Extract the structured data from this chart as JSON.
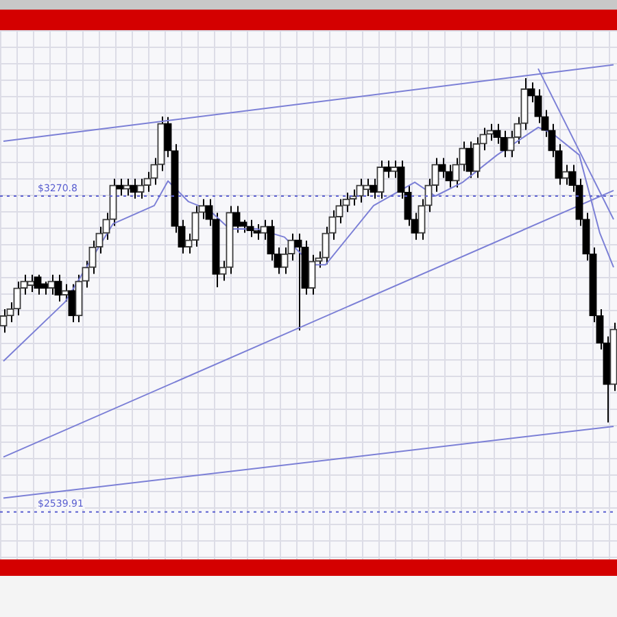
{
  "chart_data": {
    "type": "candlestick",
    "categories": [
      null,
      null,
      null,
      null,
      null,
      null,
      null,
      null,
      null,
      null,
      null,
      null,
      null,
      null,
      null,
      null,
      null,
      null,
      null,
      null,
      null,
      null,
      null,
      null,
      null,
      null,
      null,
      null,
      null,
      null,
      null,
      null,
      null,
      null,
      null,
      null,
      null,
      null,
      null,
      null,
      null,
      null,
      null,
      null,
      null,
      null,
      null,
      null,
      null,
      null,
      null,
      null,
      null,
      null,
      null,
      null,
      null,
      null,
      null,
      null,
      null,
      null,
      null,
      null,
      null,
      null,
      null,
      null,
      null,
      null,
      null,
      null,
      null,
      null,
      null,
      null,
      null,
      null,
      null,
      null,
      null,
      null,
      null,
      null,
      null,
      null,
      null,
      null,
      null,
      null
    ],
    "ohlc": [
      [
        2970,
        3009,
        2955,
        2994
      ],
      [
        2994,
        3025,
        2979,
        3010
      ],
      [
        3010,
        3073,
        2995,
        3058
      ],
      [
        3058,
        3089,
        3043,
        3074
      ],
      [
        3064,
        3089,
        3049,
        3074
      ],
      [
        3084,
        3089,
        3043,
        3058
      ],
      [
        3068,
        3073,
        3043,
        3058
      ],
      [
        3058,
        3089,
        3043,
        3074
      ],
      [
        3074,
        3089,
        3027,
        3042
      ],
      [
        3042,
        3067,
        3027,
        3052
      ],
      [
        3052,
        3067,
        2979,
        2994
      ],
      [
        2994,
        3089,
        2979,
        3074
      ],
      [
        3074,
        3121,
        3059,
        3106
      ],
      [
        3106,
        3168,
        3091,
        3153
      ],
      [
        3153,
        3200,
        3138,
        3185
      ],
      [
        3185,
        3232,
        3170,
        3217
      ],
      [
        3217,
        3311,
        3202,
        3296
      ],
      [
        3296,
        3311,
        3272,
        3287
      ],
      [
        3287,
        3311,
        3272,
        3296
      ],
      [
        3296,
        3311,
        3265,
        3280
      ],
      [
        3280,
        3311,
        3265,
        3296
      ],
      [
        3296,
        3327,
        3281,
        3312
      ],
      [
        3312,
        3359,
        3297,
        3344
      ],
      [
        3344,
        3455,
        3329,
        3439
      ],
      [
        3439,
        3454,
        3361,
        3376
      ],
      [
        3376,
        3391,
        3186,
        3201
      ],
      [
        3201,
        3216,
        3138,
        3153
      ],
      [
        3153,
        3184,
        3138,
        3169
      ],
      [
        3169,
        3248,
        3154,
        3233
      ],
      [
        3233,
        3264,
        3218,
        3249
      ],
      [
        3249,
        3264,
        3202,
        3217
      ],
      [
        3217,
        3232,
        3060,
        3090
      ],
      [
        3090,
        3121,
        3075,
        3106
      ],
      [
        3106,
        3248,
        3091,
        3233
      ],
      [
        3233,
        3248,
        3186,
        3201
      ],
      [
        3211,
        3216,
        3186,
        3201
      ],
      [
        3201,
        3216,
        3176,
        3191
      ],
      [
        3191,
        3206,
        3170,
        3185
      ],
      [
        3185,
        3216,
        3170,
        3201
      ],
      [
        3201,
        3216,
        3122,
        3137
      ],
      [
        3137,
        3152,
        3091,
        3106
      ],
      [
        3106,
        3152,
        3091,
        3137
      ],
      [
        3137,
        3184,
        3122,
        3169
      ],
      [
        3169,
        3184,
        2960,
        3153
      ],
      [
        3153,
        3168,
        3043,
        3058
      ],
      [
        3058,
        3135,
        3043,
        3120
      ],
      [
        3120,
        3143,
        3105,
        3128
      ],
      [
        3128,
        3200,
        3113,
        3185
      ],
      [
        3185,
        3238,
        3170,
        3223
      ],
      [
        3223,
        3264,
        3208,
        3249
      ],
      [
        3249,
        3279,
        3234,
        3264
      ],
      [
        3264,
        3286,
        3249,
        3271
      ],
      [
        3271,
        3311,
        3256,
        3296
      ],
      [
        3286,
        3311,
        3271,
        3296
      ],
      [
        3296,
        3311,
        3265,
        3280
      ],
      [
        3280,
        3353,
        3265,
        3338
      ],
      [
        3338,
        3353,
        3313,
        3328
      ],
      [
        3328,
        3353,
        3313,
        3338
      ],
      [
        3338,
        3353,
        3265,
        3280
      ],
      [
        3280,
        3295,
        3202,
        3217
      ],
      [
        3217,
        3232,
        3170,
        3185
      ],
      [
        3185,
        3264,
        3170,
        3249
      ],
      [
        3249,
        3311,
        3234,
        3296
      ],
      [
        3296,
        3359,
        3281,
        3344
      ],
      [
        3344,
        3359,
        3313,
        3328
      ],
      [
        3328,
        3343,
        3291,
        3306
      ],
      [
        3306,
        3359,
        3291,
        3344
      ],
      [
        3344,
        3397,
        3329,
        3382
      ],
      [
        3382,
        3397,
        3313,
        3328
      ],
      [
        3328,
        3407,
        3313,
        3392
      ],
      [
        3392,
        3429,
        3377,
        3414
      ],
      [
        3414,
        3438,
        3399,
        3423
      ],
      [
        3423,
        3438,
        3392,
        3407
      ],
      [
        3407,
        3422,
        3361,
        3376
      ],
      [
        3376,
        3422,
        3361,
        3407
      ],
      [
        3407,
        3454,
        3392,
        3439
      ],
      [
        3439,
        3544,
        3424,
        3519
      ],
      [
        3519,
        3534,
        3488,
        3503
      ],
      [
        3503,
        3518,
        3440,
        3455
      ],
      [
        3455,
        3470,
        3408,
        3423
      ],
      [
        3423,
        3438,
        3361,
        3376
      ],
      [
        3376,
        3391,
        3297,
        3312
      ],
      [
        3312,
        3343,
        3297,
        3328
      ],
      [
        3328,
        3343,
        3281,
        3296
      ],
      [
        3296,
        3311,
        3202,
        3217
      ],
      [
        3217,
        3232,
        3122,
        3137
      ],
      [
        3137,
        3152,
        2979,
        2994
      ],
      [
        2994,
        3009,
        2916,
        2931
      ],
      [
        2931,
        2946,
        2747,
        2835
      ],
      [
        2835,
        2978,
        2820,
        2963
      ]
    ],
    "series": [
      {
        "type": "line",
        "color": "#7b7fd6",
        "values": [
          2889,
          null,
          null,
          null,
          null,
          null,
          null,
          null,
          null,
          3026,
          null,
          null,
          null,
          null,
          null,
          null,
          3207,
          null,
          null,
          null,
          null,
          null,
          3249,
          null,
          3306,
          null,
          null,
          3258,
          null,
          null,
          3239,
          null,
          null,
          3195,
          null,
          null,
          null,
          3195,
          null,
          null,
          null,
          3176,
          null,
          null,
          null,
          3112,
          null,
          3112,
          null,
          null,
          null,
          null,
          null,
          null,
          3249,
          null,
          null,
          null,
          null,
          null,
          3303,
          null,
          null,
          3271,
          null,
          null,
          null,
          3303,
          null,
          null,
          null,
          null,
          3366,
          null,
          null,
          null,
          null,
          null,
          3430,
          null,
          3417,
          null,
          null,
          null,
          3366,
          null,
          null,
          3185,
          null,
          3106
        ]
      },
      {
        "type": "line",
        "color": "#7b7fd6",
        "values": [
          3398,
          null,
          null,
          null,
          null,
          null,
          null,
          null,
          null,
          null,
          null,
          null,
          null,
          null,
          null,
          null,
          null,
          null,
          null,
          null,
          null,
          null,
          null,
          null,
          null,
          null,
          null,
          null,
          null,
          null,
          null,
          null,
          null,
          null,
          null,
          null,
          null,
          null,
          null,
          null,
          null,
          null,
          null,
          null,
          null,
          null,
          null,
          null,
          null,
          null,
          null,
          null,
          null,
          null,
          null,
          null,
          null,
          null,
          null,
          null,
          null,
          null,
          null,
          null,
          null,
          null,
          null,
          null,
          null,
          null,
          null,
          null,
          null,
          null,
          null,
          null,
          null,
          null,
          null,
          null,
          null,
          null,
          null,
          null,
          null,
          null,
          null,
          null,
          null,
          3575
        ]
      },
      {
        "type": "line",
        "color": "#7b7fd6",
        "values": [
          2667,
          null,
          null,
          null,
          null,
          null,
          null,
          null,
          null,
          null,
          null,
          null,
          null,
          null,
          null,
          null,
          null,
          null,
          null,
          null,
          null,
          null,
          null,
          null,
          null,
          null,
          null,
          null,
          null,
          null,
          null,
          null,
          null,
          null,
          null,
          null,
          null,
          null,
          null,
          null,
          null,
          null,
          null,
          null,
          null,
          null,
          null,
          null,
          null,
          null,
          null,
          null,
          null,
          null,
          null,
          null,
          null,
          null,
          null,
          null,
          null,
          null,
          null,
          null,
          null,
          null,
          null,
          null,
          null,
          null,
          null,
          null,
          null,
          null,
          null,
          null,
          null,
          null,
          null,
          null,
          null,
          null,
          null,
          null,
          null,
          null,
          null,
          null,
          null,
          3284
        ]
      },
      {
        "type": "line",
        "color": "#7b7fd6",
        "values": [
          2572,
          null,
          null,
          null,
          null,
          null,
          null,
          null,
          null,
          null,
          null,
          null,
          null,
          null,
          null,
          null,
          null,
          null,
          null,
          null,
          null,
          null,
          null,
          null,
          null,
          null,
          null,
          null,
          null,
          null,
          null,
          null,
          null,
          null,
          null,
          null,
          null,
          null,
          null,
          null,
          null,
          null,
          null,
          null,
          null,
          null,
          null,
          null,
          null,
          null,
          null,
          null,
          null,
          null,
          null,
          null,
          null,
          null,
          null,
          null,
          null,
          null,
          null,
          null,
          null,
          null,
          null,
          null,
          null,
          null,
          null,
          null,
          null,
          null,
          null,
          null,
          null,
          null,
          null,
          null,
          null,
          null,
          null,
          null,
          null,
          null,
          null,
          null,
          null,
          2738
        ]
      },
      {
        "type": "line",
        "color": "#7b7fd6",
        "values": [
          null,
          null,
          null,
          null,
          null,
          null,
          null,
          null,
          null,
          null,
          null,
          null,
          null,
          null,
          null,
          null,
          null,
          null,
          null,
          null,
          null,
          null,
          null,
          null,
          null,
          null,
          null,
          null,
          null,
          null,
          null,
          null,
          null,
          null,
          null,
          null,
          null,
          null,
          null,
          null,
          null,
          null,
          null,
          null,
          null,
          null,
          null,
          null,
          null,
          null,
          null,
          null,
          null,
          null,
          null,
          null,
          null,
          null,
          null,
          null,
          null,
          null,
          null,
          null,
          null,
          null,
          null,
          null,
          null,
          null,
          null,
          null,
          null,
          null,
          null,
          null,
          null,
          null,
          3566,
          null,
          null,
          null,
          null,
          null,
          null,
          null,
          null,
          null,
          null,
          3217
        ]
      }
    ],
    "ylim": [
      2430,
      3655
    ],
    "ref_lines": [
      {
        "axis": "y",
        "value": 3270.8,
        "label": "$3270.8",
        "color": "#5a5fd0",
        "line_style": "dotted"
      },
      {
        "axis": "y",
        "value": 2539.91,
        "label": "$2539.91",
        "color": "#5a5fd0",
        "line_style": "dotted"
      }
    ],
    "tick_labels": false,
    "grid": true,
    "legend": false
  }
}
